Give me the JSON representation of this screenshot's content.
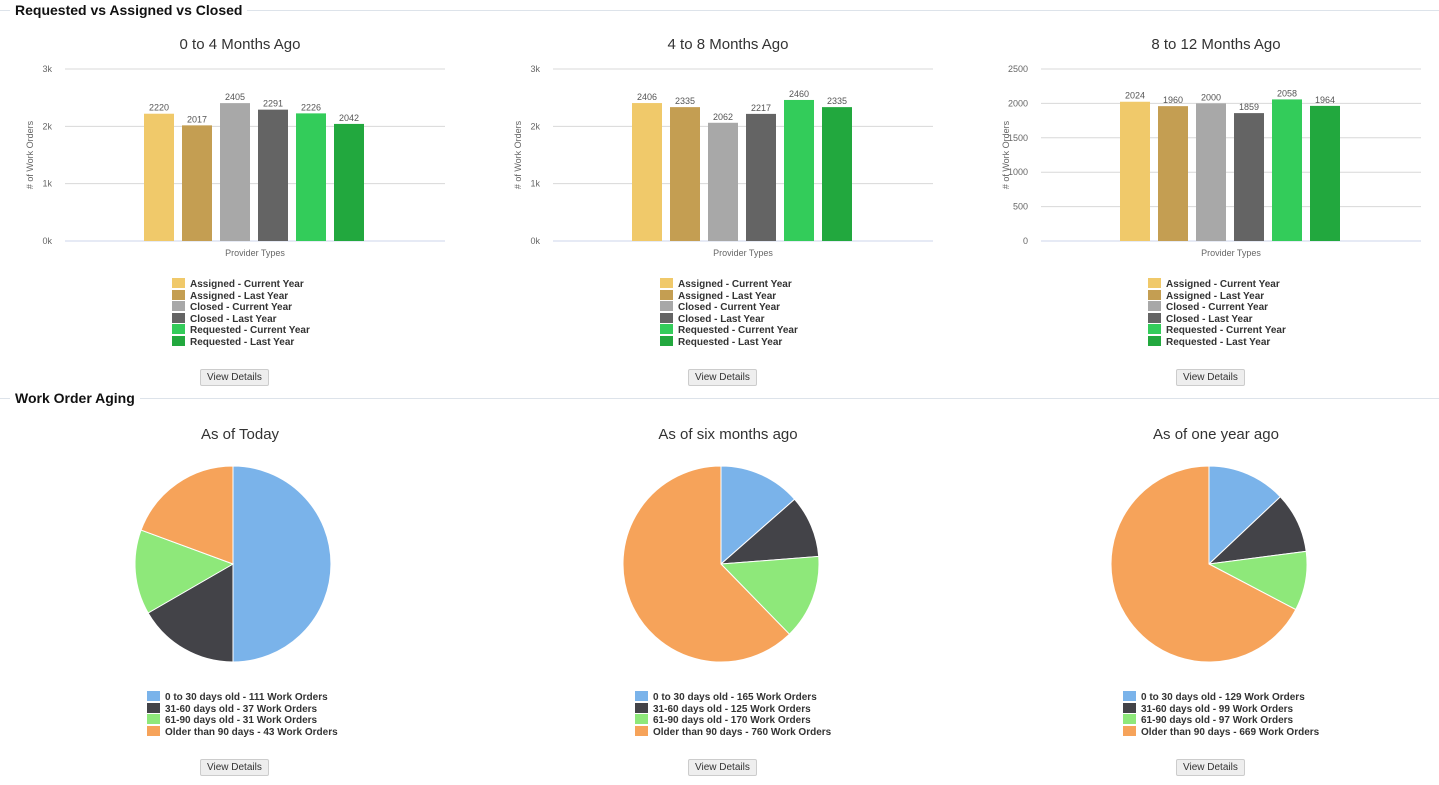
{
  "sections": {
    "bar": "Requested vs Assigned vs Closed",
    "pie": "Work Order Aging"
  },
  "view_details": "View Details",
  "bar_series": [
    {
      "name": "Assigned - Current Year",
      "color": "#f0c96a"
    },
    {
      "name": "Assigned - Last Year",
      "color": "#c49e52"
    },
    {
      "name": "Closed - Current Year",
      "color": "#a8a8a8"
    },
    {
      "name": "Closed - Last Year",
      "color": "#646464"
    },
    {
      "name": "Requested - Current Year",
      "color": "#33cc5a"
    },
    {
      "name": "Requested - Last Year",
      "color": "#22a83e"
    }
  ],
  "pie_colors": [
    "#7ab3ea",
    "#434348",
    "#8ee87a",
    "#f6a35a"
  ],
  "chart_data": [
    {
      "type": "bar",
      "title": "0 to 4 Months Ago",
      "xlabel": "Provider Types",
      "ylabel": "# of Work Orders",
      "ylim": [
        0,
        3000
      ],
      "yticks": [
        "0k",
        "1k",
        "2k",
        "3k"
      ],
      "ytick_values": [
        0,
        1000,
        2000,
        3000
      ],
      "grid": true,
      "legend": "bottom",
      "values": [
        2220,
        2017,
        2405,
        2291,
        2226,
        2042
      ]
    },
    {
      "type": "bar",
      "title": "4 to 8 Months Ago",
      "xlabel": "Provider Types",
      "ylabel": "# of Work Orders",
      "ylim": [
        0,
        3000
      ],
      "yticks": [
        "0k",
        "1k",
        "2k",
        "3k"
      ],
      "ytick_values": [
        0,
        1000,
        2000,
        3000
      ],
      "grid": true,
      "legend": "bottom",
      "values": [
        2406,
        2335,
        2062,
        2217,
        2460,
        2335
      ]
    },
    {
      "type": "bar",
      "title": "8 to 12 Months Ago",
      "xlabel": "Provider Types",
      "ylabel": "# of Work Orders",
      "ylim": [
        0,
        2500
      ],
      "yticks": [
        "0",
        "500",
        "1000",
        "1500",
        "2000",
        "2500"
      ],
      "ytick_values": [
        0,
        500,
        1000,
        1500,
        2000,
        2500
      ],
      "grid": true,
      "legend": "bottom",
      "values": [
        2024,
        1960,
        2000,
        1859,
        2058,
        1964
      ]
    },
    {
      "type": "pie",
      "title": "As of Today",
      "legend": "bottom",
      "labels": [
        "0 to 30 days old - 111 Work Orders",
        "31-60 days old - 37 Work Orders",
        "61-90 days old - 31 Work Orders",
        "Older than 90 days - 43 Work Orders"
      ],
      "values": [
        111,
        37,
        31,
        43
      ]
    },
    {
      "type": "pie",
      "title": "As of six months ago",
      "legend": "bottom",
      "labels": [
        "0 to 30 days old - 165 Work Orders",
        "31-60 days old - 125 Work Orders",
        "61-90 days old - 170 Work Orders",
        "Older than 90 days - 760 Work Orders"
      ],
      "values": [
        165,
        125,
        170,
        760
      ]
    },
    {
      "type": "pie",
      "title": "As of one year ago",
      "legend": "bottom",
      "labels": [
        "0 to 30 days old - 129 Work Orders",
        "31-60 days old - 99 Work Orders",
        "61-90 days old - 97 Work Orders",
        "Older than 90 days - 669 Work Orders"
      ],
      "values": [
        129,
        99,
        97,
        669
      ]
    }
  ]
}
